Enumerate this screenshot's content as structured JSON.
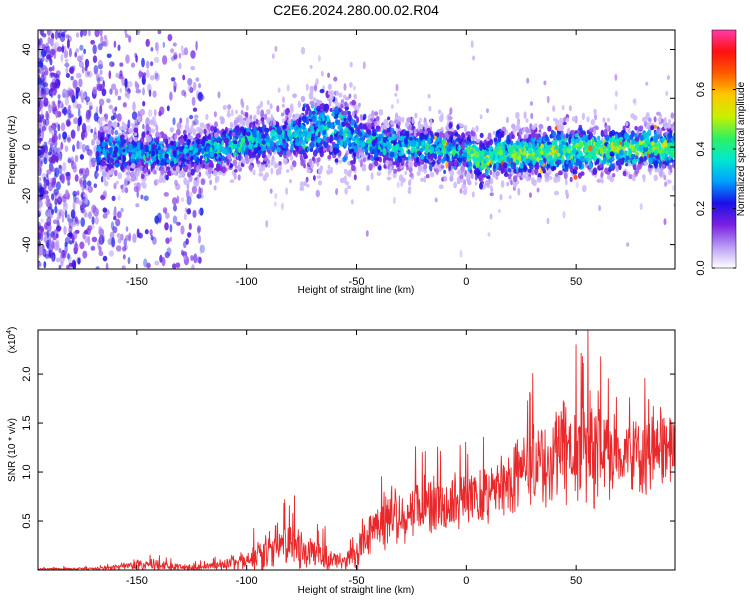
{
  "title": "C2E6.2024.280.00.02.R04",
  "colors": {
    "snr_line": "#e8282a",
    "spectrogram_base": "#8a3cf0",
    "axis": "#000000"
  },
  "chart_data": [
    {
      "type": "heatmap",
      "xlabel": "Height of straight line (km)",
      "ylabel": "Frequency (Hz)",
      "xlim": [
        -195,
        95
      ],
      "ylim": [
        -50,
        48
      ],
      "xticks": [
        -150,
        -100,
        -50,
        0,
        50
      ],
      "xtick_labels": [
        "-150",
        "-100",
        "-50",
        "0",
        "50"
      ],
      "yticks": [
        -40,
        -20,
        0,
        20,
        40
      ],
      "ytick_labels": [
        "-40",
        "-20",
        "0",
        "20",
        "40"
      ],
      "colorbar": {
        "label": "Normalized spectral amplitude",
        "range": [
          0,
          0.8
        ],
        "ticks": [
          0.0,
          0.2,
          0.4,
          0.6
        ],
        "tick_labels": [
          "0.0",
          "0.2",
          "0.4",
          "0.6"
        ],
        "colormap": [
          "#ffffff",
          "#b79af5",
          "#7a1fe0",
          "#1a10e8",
          "#00a0ff",
          "#00e8d0",
          "#30f060",
          "#c8f000",
          "#ffc800",
          "#ff5a00",
          "#ff1010",
          "#ff3aa8"
        ]
      },
      "band_center_hz": [
        [
          -160,
          -2
        ],
        [
          -140,
          -3
        ],
        [
          -120,
          -2
        ],
        [
          -100,
          2
        ],
        [
          -80,
          4
        ],
        [
          -65,
          8
        ],
        [
          -55,
          6
        ],
        [
          -40,
          1
        ],
        [
          -30,
          0
        ],
        [
          -20,
          0
        ],
        [
          0,
          -2
        ],
        [
          8,
          -6
        ],
        [
          15,
          -2
        ],
        [
          25,
          -3
        ],
        [
          40,
          -2
        ],
        [
          60,
          -1
        ],
        [
          80,
          0
        ],
        [
          95,
          -1
        ]
      ],
      "notes": "Diffuse low-amplitude emission across all frequencies for heights below about -125 km; concentrated band within about ±10 Hz of 0 Hz from -165 to 95 km, with peak amplitudes (~0.7) near 5 to 90 km."
    },
    {
      "type": "line",
      "xlabel": "Height of straight line (km)",
      "ylabel": "SNR (10 * v/v)",
      "y_multiplier_label": "(x10",
      "y_multiplier_exp": "4",
      "xlim": [
        -195,
        95
      ],
      "ylim": [
        0,
        24500
      ],
      "xticks": [
        -150,
        -100,
        -50,
        0,
        50
      ],
      "xtick_labels": [
        "-150",
        "-100",
        "-50",
        "0",
        "50"
      ],
      "yticks": [
        5000,
        10000,
        15000,
        20000
      ],
      "ytick_labels": [
        "0.5",
        "1.0",
        "1.5",
        "2.0"
      ],
      "series": [
        {
          "color": "#e8282a",
          "envelope_x": [
            -195,
            -170,
            -160,
            -150,
            -140,
            -130,
            -120,
            -110,
            -100,
            -95,
            -90,
            -85,
            -80,
            -75,
            -70,
            -65,
            -60,
            -55,
            -50,
            -45,
            -40,
            -35,
            -30,
            -25,
            -20,
            -15,
            -10,
            -5,
            0,
            5,
            10,
            15,
            20,
            25,
            30,
            35,
            40,
            45,
            50,
            55,
            60,
            65,
            70,
            75,
            80,
            85,
            90,
            95
          ],
          "envelope_mean": [
            100,
            150,
            300,
            500,
            400,
            300,
            300,
            500,
            900,
            1500,
            2000,
            2500,
            2800,
            2200,
            1800,
            1400,
            1200,
            1100,
            1500,
            3500,
            4500,
            5500,
            5000,
            6000,
            6200,
            6800,
            6500,
            7000,
            7200,
            7500,
            8000,
            8500,
            9000,
            10000,
            10500,
            11000,
            11500,
            12000,
            12500,
            12500,
            12000,
            12000,
            11800,
            11500,
            11500,
            12000,
            12000,
            12000
          ],
          "envelope_amp": [
            100,
            200,
            400,
            700,
            600,
            400,
            400,
            700,
            1200,
            2000,
            2500,
            3000,
            3000,
            2600,
            2200,
            1800,
            1400,
            1200,
            1800,
            2800,
            3000,
            3500,
            3500,
            3800,
            3800,
            4000,
            3600,
            3500,
            3500,
            3500,
            3500,
            3800,
            4000,
            5000,
            5500,
            6000,
            6500,
            7000,
            7500,
            7500,
            7000,
            6500,
            6000,
            5500,
            5000,
            4500,
            4500,
            4500
          ]
        }
      ]
    }
  ]
}
